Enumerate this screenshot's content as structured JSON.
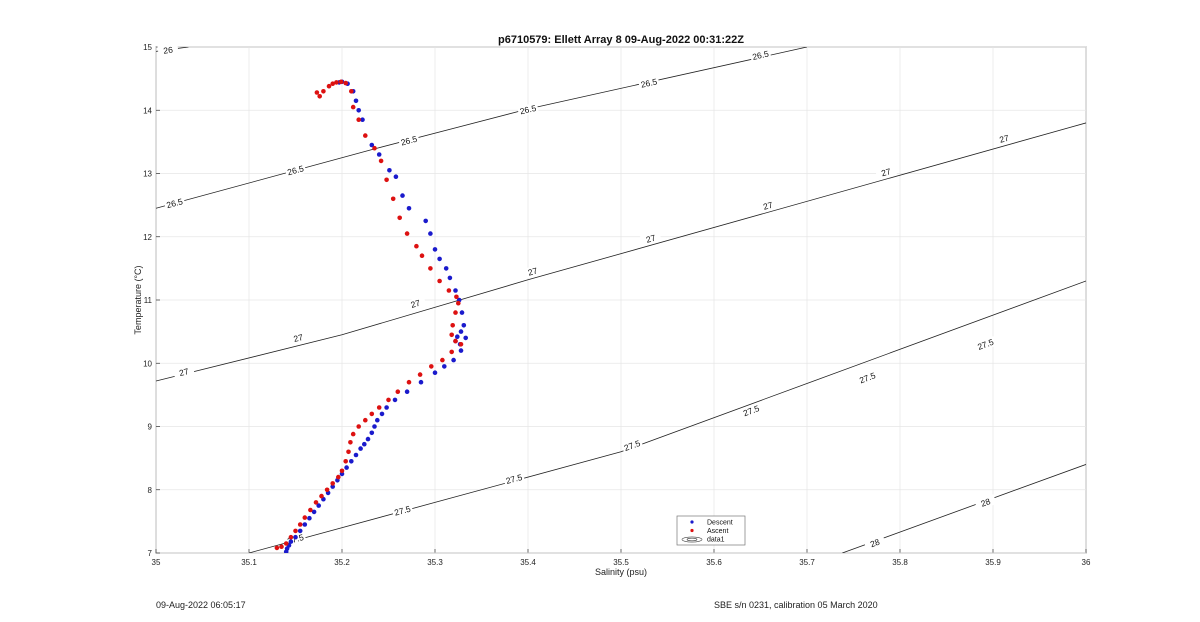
{
  "chart_data": {
    "type": "scatter",
    "title": "p6710579: Ellett Array 8 09-Aug-2022 00:31:22Z",
    "xlabel": "Salinity (psu)",
    "ylabel": "Temperature (°C)",
    "xlim": [
      35,
      36
    ],
    "ylim": [
      7,
      15
    ],
    "xticks": [
      "35",
      "35.1",
      "35.2",
      "35.3",
      "35.4",
      "35.5",
      "35.6",
      "35.7",
      "35.8",
      "35.9",
      "36"
    ],
    "yticks": [
      "7",
      "8",
      "9",
      "10",
      "11",
      "12",
      "13",
      "14",
      "15"
    ],
    "grid": true,
    "legend_position": "bottom-center",
    "legend": [
      "Descent",
      "Ascent",
      "data1"
    ],
    "colors": {
      "descent": "#1a1acc",
      "ascent": "#dd1111",
      "contour": "#222222"
    },
    "contours": [
      {
        "label": "26",
        "points": [
          [
            35.0,
            14.93
          ],
          [
            35.035,
            15.0
          ]
        ],
        "label_positions": [
          [
            35.013,
            14.95
          ]
        ]
      },
      {
        "label": "26.5",
        "points": [
          [
            35.0,
            12.45
          ],
          [
            35.23,
            13.37
          ],
          [
            35.4,
            14.02
          ],
          [
            35.7,
            15.0
          ]
        ],
        "label_positions": [
          [
            35.02,
            12.53
          ],
          [
            35.15,
            13.05
          ],
          [
            35.272,
            13.52
          ],
          [
            35.4,
            14.01
          ],
          [
            35.53,
            14.43
          ],
          [
            35.65,
            14.87
          ]
        ]
      },
      {
        "label": "27",
        "points": [
          [
            35.0,
            9.72
          ],
          [
            35.2,
            10.45
          ],
          [
            35.4,
            11.32
          ],
          [
            36.0,
            13.8
          ]
        ],
        "label_positions": [
          [
            35.03,
            9.86
          ],
          [
            35.153,
            10.4
          ],
          [
            35.279,
            10.94
          ],
          [
            35.405,
            11.45
          ],
          [
            35.532,
            11.97
          ],
          [
            35.658,
            12.49
          ],
          [
            35.785,
            13.02
          ],
          [
            35.912,
            13.55
          ]
        ]
      },
      {
        "label": "27.5",
        "points": [
          [
            35.1,
            7.0
          ],
          [
            35.3,
            7.8
          ],
          [
            35.5,
            8.6
          ],
          [
            36.0,
            11.3
          ]
        ],
        "label_positions": [
          [
            35.15,
            7.22
          ],
          [
            35.265,
            7.67
          ],
          [
            35.385,
            8.17
          ],
          [
            35.512,
            8.7
          ],
          [
            35.64,
            9.25
          ],
          [
            35.765,
            9.77
          ],
          [
            35.892,
            10.3
          ]
        ]
      },
      {
        "label": "28",
        "points": [
          [
            35.738,
            7.0
          ],
          [
            36.0,
            8.4
          ]
        ],
        "label_positions": [
          [
            35.773,
            7.16
          ],
          [
            35.892,
            7.8
          ]
        ]
      }
    ],
    "series": [
      {
        "name": "Descent",
        "x": [
          35.197,
          35.2,
          35.206,
          35.212,
          35.215,
          35.218,
          35.222,
          35.232,
          35.24,
          35.251,
          35.258,
          35.265,
          35.272,
          35.29,
          35.295,
          35.3,
          35.305,
          35.312,
          35.316,
          35.322,
          35.326,
          35.329,
          35.331,
          35.328,
          35.324,
          35.322,
          35.327,
          35.333,
          35.328,
          35.32,
          35.31,
          35.3,
          35.285,
          35.27,
          35.257,
          35.248,
          35.243,
          35.238,
          35.235,
          35.232,
          35.228,
          35.224,
          35.22,
          35.215,
          35.21,
          35.205,
          35.2,
          35.195,
          35.19,
          35.185,
          35.18,
          35.175,
          35.17,
          35.165,
          35.16,
          35.155,
          35.15,
          35.145,
          35.143,
          35.141,
          35.14
        ],
        "y": [
          14.44,
          14.45,
          14.42,
          14.3,
          14.15,
          14.0,
          13.85,
          13.45,
          13.3,
          13.05,
          12.95,
          12.65,
          12.45,
          12.25,
          12.05,
          11.8,
          11.65,
          11.5,
          11.35,
          11.15,
          11.0,
          10.8,
          10.6,
          10.5,
          10.42,
          10.35,
          10.3,
          10.4,
          10.2,
          10.05,
          9.95,
          9.85,
          9.7,
          9.55,
          9.42,
          9.3,
          9.2,
          9.1,
          9.0,
          8.9,
          8.8,
          8.72,
          8.65,
          8.55,
          8.45,
          8.35,
          8.25,
          8.15,
          8.05,
          7.95,
          7.85,
          7.75,
          7.65,
          7.55,
          7.45,
          7.35,
          7.25,
          7.18,
          7.12,
          7.07,
          7.02
        ]
      },
      {
        "name": "Ascent",
        "x": [
          35.173,
          35.176,
          35.18,
          35.186,
          35.19,
          35.194,
          35.199,
          35.204,
          35.21,
          35.212,
          35.218,
          35.225,
          35.235,
          35.242,
          35.248,
          35.255,
          35.262,
          35.27,
          35.28,
          35.286,
          35.295,
          35.305,
          35.315,
          35.323,
          35.325,
          35.322,
          35.319,
          35.318,
          35.322,
          35.328,
          35.318,
          35.308,
          35.296,
          35.284,
          35.272,
          35.26,
          35.25,
          35.24,
          35.232,
          35.225,
          35.218,
          35.212,
          35.209,
          35.207,
          35.204,
          35.2,
          35.196,
          35.19,
          35.184,
          35.178,
          35.172,
          35.166,
          35.16,
          35.155,
          35.15,
          35.145,
          35.14,
          35.135,
          35.13
        ],
        "y": [
          14.28,
          14.22,
          14.3,
          14.38,
          14.42,
          14.44,
          14.45,
          14.43,
          14.3,
          14.05,
          13.85,
          13.6,
          13.4,
          13.2,
          12.9,
          12.6,
          12.3,
          12.05,
          11.85,
          11.7,
          11.5,
          11.3,
          11.15,
          11.05,
          10.95,
          10.8,
          10.6,
          10.45,
          10.35,
          10.3,
          10.18,
          10.05,
          9.95,
          9.82,
          9.7,
          9.55,
          9.42,
          9.3,
          9.2,
          9.1,
          9.0,
          8.88,
          8.75,
          8.6,
          8.45,
          8.3,
          8.2,
          8.1,
          8.0,
          7.9,
          7.8,
          7.68,
          7.56,
          7.45,
          7.35,
          7.25,
          7.15,
          7.1,
          7.08
        ]
      }
    ]
  },
  "footer": {
    "left": "09-Aug-2022 06:05:17",
    "right": "SBE s/n 0231, calibration 05 March 2020"
  }
}
